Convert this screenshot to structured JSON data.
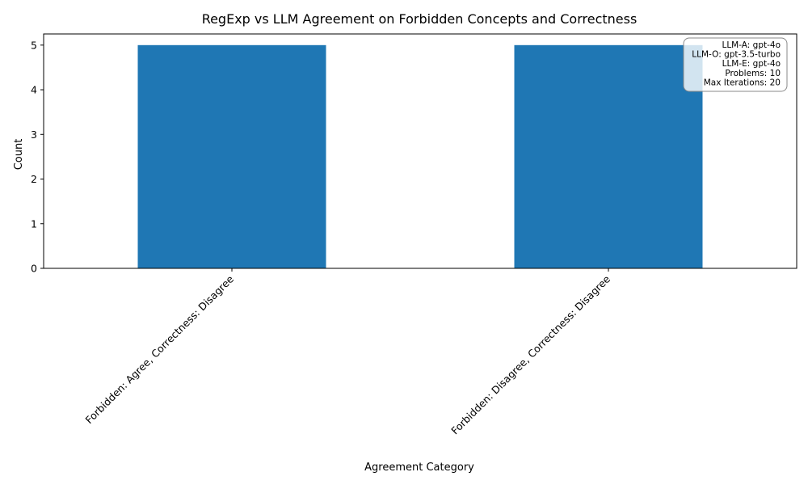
{
  "chart_data": {
    "type": "bar",
    "title": "RegExp vs LLM Agreement on Forbidden Concepts and Correctness",
    "xlabel": "Agreement Category",
    "ylabel": "Count",
    "categories": [
      "Forbidden: Agree, Correctness: Disagree",
      "Forbidden: Disagree, Correctness: Disagree"
    ],
    "values": [
      5,
      5
    ],
    "ylim": [
      0,
      5.25
    ],
    "yticks": [
      0,
      1,
      2,
      3,
      4,
      5
    ],
    "grid": false,
    "bar_color": "#1f77b4",
    "annotation": {
      "placement": "top-right",
      "lines": [
        "LLM-A: gpt-4o",
        "LLM-O: gpt-3.5-turbo",
        "LLM-E: gpt-4o",
        "Problems: 10",
        "Max Iterations: 20"
      ]
    }
  }
}
